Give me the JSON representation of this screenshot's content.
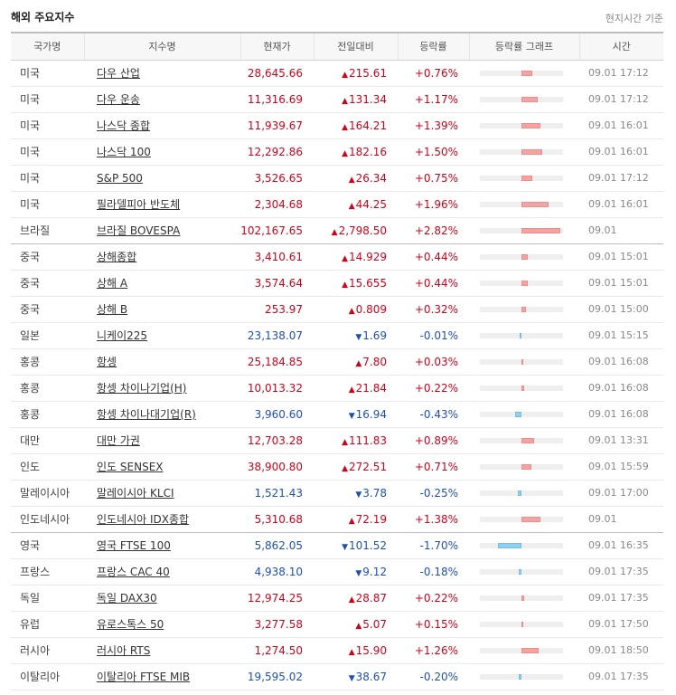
{
  "header": {
    "title": "해외 주요지수",
    "basis": "현지시간 기준"
  },
  "columns": [
    "국가명",
    "지수명",
    "현재가",
    "전일대비",
    "등락률",
    "등락률 그래프",
    "시간"
  ],
  "colors": {
    "up": "#d0021b",
    "down": "#1f4fb6",
    "bar_up": "#f4a3a3",
    "bar_down": "#8fd0ef"
  },
  "rows": [
    {
      "country": "미국",
      "name": "다우 산업",
      "price": "28,645.66",
      "dir": "up",
      "change": "215.61",
      "rate": "+0.76%",
      "rate_value": 0.76,
      "time": "09.01 17:12"
    },
    {
      "country": "미국",
      "name": "다우 운송",
      "price": "11,316.69",
      "dir": "up",
      "change": "131.34",
      "rate": "+1.17%",
      "rate_value": 1.17,
      "time": "09.01 17:12"
    },
    {
      "country": "미국",
      "name": "나스닥 종합",
      "price": "11,939.67",
      "dir": "up",
      "change": "164.21",
      "rate": "+1.39%",
      "rate_value": 1.39,
      "time": "09.01 16:01"
    },
    {
      "country": "미국",
      "name": "나스닥 100",
      "price": "12,292.86",
      "dir": "up",
      "change": "182.16",
      "rate": "+1.50%",
      "rate_value": 1.5,
      "time": "09.01 16:01"
    },
    {
      "country": "미국",
      "name": "S&P 500",
      "price": "3,526.65",
      "dir": "up",
      "change": "26.34",
      "rate": "+0.75%",
      "rate_value": 0.75,
      "time": "09.01 17:12"
    },
    {
      "country": "미국",
      "name": "필라델피아 반도체",
      "price": "2,304.68",
      "dir": "up",
      "change": "44.25",
      "rate": "+1.96%",
      "rate_value": 1.96,
      "time": "09.01 16:01"
    },
    {
      "country": "브라질",
      "name": "브라질 BOVESPA",
      "price": "102,167.65",
      "dir": "up",
      "change": "2,798.50",
      "rate": "+2.82%",
      "rate_value": 2.82,
      "time": "09.01",
      "group_end": true
    },
    {
      "country": "중국",
      "name": "상해종합",
      "price": "3,410.61",
      "dir": "up",
      "change": "14.929",
      "rate": "+0.44%",
      "rate_value": 0.44,
      "time": "09.01 15:01"
    },
    {
      "country": "중국",
      "name": "상해 A",
      "price": "3,574.64",
      "dir": "up",
      "change": "15.655",
      "rate": "+0.44%",
      "rate_value": 0.44,
      "time": "09.01 15:01"
    },
    {
      "country": "중국",
      "name": "상해 B",
      "price": "253.97",
      "dir": "up",
      "change": "0.809",
      "rate": "+0.32%",
      "rate_value": 0.32,
      "time": "09.01 15:00"
    },
    {
      "country": "일본",
      "name": "니케이225",
      "price": "23,138.07",
      "dir": "down",
      "change": "1.69",
      "rate": "-0.01%",
      "rate_value": -0.01,
      "time": "09.01 15:15"
    },
    {
      "country": "홍콩",
      "name": "항셍",
      "price": "25,184.85",
      "dir": "up",
      "change": "7.80",
      "rate": "+0.03%",
      "rate_value": 0.03,
      "time": "09.01 16:08"
    },
    {
      "country": "홍콩",
      "name": "항셍 차이나기업(H)",
      "price": "10,013.32",
      "dir": "up",
      "change": "21.84",
      "rate": "+0.22%",
      "rate_value": 0.22,
      "time": "09.01 16:08"
    },
    {
      "country": "홍콩",
      "name": "항셍 차이나대기업(R)",
      "price": "3,960.60",
      "dir": "down",
      "change": "16.94",
      "rate": "-0.43%",
      "rate_value": -0.43,
      "time": "09.01 16:08"
    },
    {
      "country": "대만",
      "name": "대만 가권",
      "price": "12,703.28",
      "dir": "up",
      "change": "111.83",
      "rate": "+0.89%",
      "rate_value": 0.89,
      "time": "09.01 13:31"
    },
    {
      "country": "인도",
      "name": "인도 SENSEX",
      "price": "38,900.80",
      "dir": "up",
      "change": "272.51",
      "rate": "+0.71%",
      "rate_value": 0.71,
      "time": "09.01 15:59"
    },
    {
      "country": "말레이시아",
      "name": "말레이시아 KLCI",
      "price": "1,521.43",
      "dir": "down",
      "change": "3.78",
      "rate": "-0.25%",
      "rate_value": -0.25,
      "time": "09.01 17:00"
    },
    {
      "country": "인도네시아",
      "name": "인도네시아 IDX종합",
      "price": "5,310.68",
      "dir": "up",
      "change": "72.19",
      "rate": "+1.38%",
      "rate_value": 1.38,
      "time": "09.01",
      "group_end": true
    },
    {
      "country": "영국",
      "name": "영국 FTSE 100",
      "price": "5,862.05",
      "dir": "down",
      "change": "101.52",
      "rate": "-1.70%",
      "rate_value": -1.7,
      "time": "09.01 16:35"
    },
    {
      "country": "프랑스",
      "name": "프랑스 CAC 40",
      "price": "4,938.10",
      "dir": "down",
      "change": "9.12",
      "rate": "-0.18%",
      "rate_value": -0.18,
      "time": "09.01 17:35"
    },
    {
      "country": "독일",
      "name": "독일 DAX30",
      "price": "12,974.25",
      "dir": "up",
      "change": "28.87",
      "rate": "+0.22%",
      "rate_value": 0.22,
      "time": "09.01 17:35"
    },
    {
      "country": "유럽",
      "name": "유로스톡스 50",
      "price": "3,277.58",
      "dir": "up",
      "change": "5.07",
      "rate": "+0.15%",
      "rate_value": 0.15,
      "time": "09.01 17:50"
    },
    {
      "country": "러시아",
      "name": "러시아 RTS",
      "price": "1,274.50",
      "dir": "up",
      "change": "15.90",
      "rate": "+1.26%",
      "rate_value": 1.26,
      "time": "09.01 18:50"
    },
    {
      "country": "이탈리아",
      "name": "이탈리아 FTSE MIB",
      "price": "19,595.02",
      "dir": "down",
      "change": "38.67",
      "rate": "-0.20%",
      "rate_value": -0.2,
      "time": "09.01 17:35"
    }
  ]
}
